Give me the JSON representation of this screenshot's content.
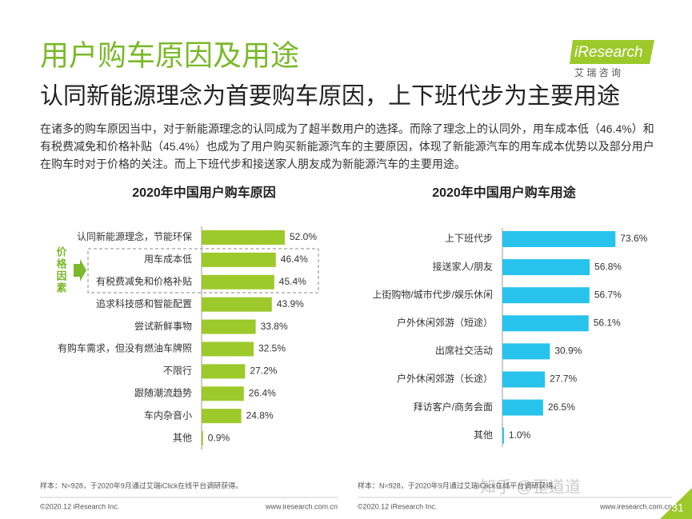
{
  "header": {
    "title": "用户购车原因及用途",
    "subtitle": "认同新能源理念为首要购车原因，上下班代步为主要用途",
    "logo": "iResearch",
    "logo_sub": "艾 瑞 咨 询"
  },
  "intro": "在诸多的购车原因当中，对于新能源理念的认同成为了超半数用户的选择。而除了理念上的认同外，用车成本低（46.4%）和有税费减免和价格补贴（45.4%）也成为了用户购买新能源汽车的主要原因，体现了新能源汽车的用车成本优势以及部分用户在购车时对于价格的关注。而上下班代步和接送家人朋友成为新能源汽车的主要用途。",
  "bracket_label": "价格因素",
  "chart_data": [
    {
      "type": "bar",
      "title": "2020年中国用户购车原因",
      "color": "#9dc92b",
      "xlim": [
        0,
        100
      ],
      "categories": [
        "认同新能源理念，节能环保",
        "用车成本低",
        "有税费减免和价格补贴",
        "追求科技感和智能配置",
        "尝试新鲜事物",
        "有购车需求，但没有燃油车牌照",
        "不限行",
        "跟随潮流趋势",
        "车内杂音小",
        "其他"
      ],
      "values": [
        52.0,
        46.4,
        45.4,
        43.9,
        33.8,
        32.5,
        27.2,
        26.4,
        24.8,
        0.9
      ],
      "value_labels": [
        "52.0%",
        "46.4%",
        "45.4%",
        "43.9%",
        "33.8%",
        "32.5%",
        "27.2%",
        "26.4%",
        "24.8%",
        "0.9%"
      ],
      "note": "样本：N=928，于2020年9月通过艾瑞iClick在线平台调研获得。",
      "copyright": "©2020.12 iResearch Inc.",
      "url": "www.iresearch.com.cn"
    },
    {
      "type": "bar",
      "title": "2020年中国用户购车用途",
      "color": "#27c3ec",
      "xlim": [
        0,
        100
      ],
      "categories": [
        "上下班代步",
        "接送家人/朋友",
        "上街购物/城市代步/娱乐休闲",
        "户外休闲郊游（短途）",
        "出席社交活动",
        "户外休闲郊游（长途）",
        "拜访客户/商务会面",
        "其他"
      ],
      "values": [
        73.6,
        56.8,
        56.7,
        56.1,
        30.9,
        27.7,
        26.5,
        1.0
      ],
      "value_labels": [
        "73.6%",
        "56.8%",
        "56.7%",
        "56.1%",
        "30.9%",
        "27.7%",
        "26.5%",
        "1.0%"
      ],
      "note": "样本：N=928，于2020年9月通过艾瑞iClick在线平台调研获得。",
      "copyright": "©2020.12 iResearch Inc.",
      "url": "www.iresearch.com.cn"
    }
  ],
  "page_number": "31",
  "watermark": "知乎 @歪道道"
}
